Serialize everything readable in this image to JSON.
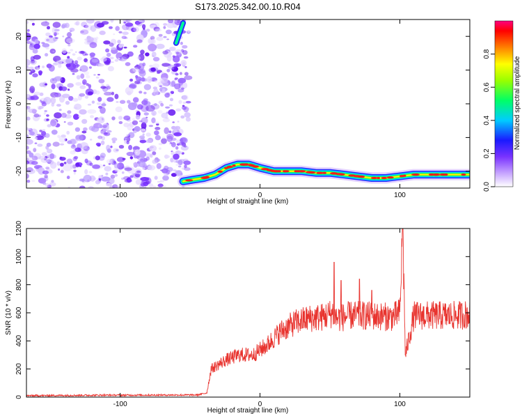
{
  "chart_data": [
    {
      "type": "heatmap",
      "title": "S173.2025.342.00.10.R04",
      "xlabel": "Height of straight line (km)",
      "ylabel": "Frequency (Hz)",
      "xlim": [
        -167,
        150
      ],
      "ylim": [
        -25,
        25
      ],
      "x_ticks": [
        "-100",
        "0",
        "100"
      ],
      "y_ticks": [
        "20",
        "10",
        "0",
        "-10",
        "-20"
      ],
      "colorbar": {
        "label": "Normalized spectral amplitude",
        "range": [
          0,
          1
        ],
        "ticks": [
          "0.0",
          "0.2",
          "0.4",
          "0.6",
          "0.8"
        ],
        "colors": [
          "#ffffff",
          "#9966ff",
          "#0000ff",
          "#00ffff",
          "#00ff00",
          "#ffff00",
          "#ff0000",
          "#ff0080"
        ]
      },
      "noise_region_x": [
        -167,
        -55
      ],
      "trace": {
        "x": [
          -55,
          -48,
          -40,
          -32,
          -24,
          -16,
          -8,
          0,
          10,
          20,
          30,
          40,
          50,
          60,
          70,
          80,
          90,
          100,
          110,
          120,
          130,
          140,
          150
        ],
        "y": [
          -23,
          -22.5,
          -22,
          -21,
          -19,
          -18,
          -18,
          -19,
          -20,
          -20,
          -20,
          -20.5,
          -20.5,
          -21,
          -21.5,
          -22,
          -22,
          -21.5,
          -21,
          -21,
          -21,
          -21,
          -21
        ]
      },
      "early_trace": {
        "x": [
          -60,
          -55
        ],
        "y": [
          18,
          24
        ]
      }
    },
    {
      "type": "line",
      "xlabel": "Height of straight line (km)",
      "ylabel": "SNR (10 * v/v)",
      "xlim": [
        -167,
        150
      ],
      "ylim": [
        0,
        1200
      ],
      "x_ticks": [
        "-100",
        "0",
        "100"
      ],
      "y_ticks": [
        "0",
        "200",
        "400",
        "600",
        "800",
        "1000",
        "1200"
      ],
      "series": [
        {
          "color": "#e8332e",
          "x": [
            -167,
            -140,
            -110,
            -80,
            -60,
            -45,
            -38,
            -35,
            -25,
            -15,
            -5,
            5,
            15,
            25,
            35,
            45,
            52,
            55,
            65,
            75,
            85,
            95,
            100,
            102,
            104,
            110,
            120,
            130,
            140,
            150
          ],
          "values": [
            10,
            12,
            14,
            14,
            15,
            15,
            30,
            200,
            260,
            300,
            300,
            370,
            470,
            530,
            560,
            570,
            600,
            560,
            580,
            580,
            575,
            570,
            600,
            1200,
            300,
            580,
            580,
            580,
            580,
            590
          ]
        }
      ],
      "spikes": [
        {
          "x": 53,
          "value": 960
        },
        {
          "x": 56,
          "value": 560
        },
        {
          "x": 58,
          "value": 830
        },
        {
          "x": 71,
          "value": 840
        },
        {
          "x": 80,
          "value": 760
        },
        {
          "x": 102,
          "value": 1200
        },
        {
          "x": 104,
          "value": 300
        }
      ]
    }
  ]
}
